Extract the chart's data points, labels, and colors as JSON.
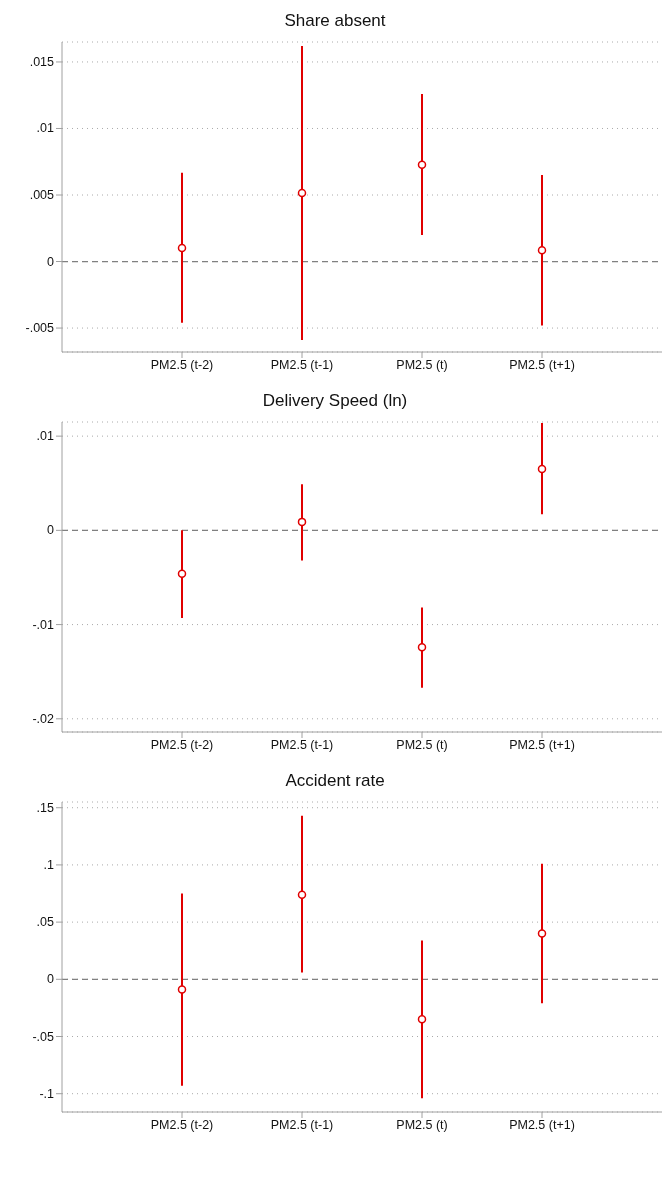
{
  "chart_data": [
    {
      "type": "scatter",
      "title": "Share absent",
      "categories": [
        "PM2.5 (t-2)",
        "PM2.5 (t-1)",
        "PM2.5 (t)",
        "PM2.5 (t+1)"
      ],
      "color": "#e00000",
      "marker": "circle",
      "values": [
        0.00102,
        0.00515,
        0.00728,
        0.00085
      ],
      "errors": [
        [
          -0.0046,
          0.00667
        ],
        [
          -0.0059,
          0.0162
        ],
        [
          0.002,
          0.0126
        ],
        [
          -0.0048,
          0.0065
        ]
      ],
      "ylim": [
        -0.0068,
        0.0165
      ],
      "yticks": [
        {
          "value": -0.005,
          "label": "-.005"
        },
        {
          "value": 0,
          "label": "0"
        },
        {
          "value": 0.005,
          "label": ".005"
        },
        {
          "value": 0.01,
          "label": ".01"
        },
        {
          "value": 0.015,
          "label": ".015"
        }
      ],
      "grid": "y",
      "ref_lines": [
        {
          "axis": "y",
          "value": 0,
          "color": "#808080",
          "line_style": "dashed"
        }
      ]
    },
    {
      "type": "scatter",
      "title": "Delivery Speed (ln)",
      "categories": [
        "PM2.5 (t-2)",
        "PM2.5 (t-1)",
        "PM2.5 (t)",
        "PM2.5 (t+1)"
      ],
      "color": "#e00000",
      "marker": "circle",
      "values": [
        -0.0046,
        0.0009,
        -0.0124,
        0.0065
      ],
      "errors": [
        [
          -0.0093,
          0.0
        ],
        [
          -0.0032,
          0.0049
        ],
        [
          -0.0167,
          -0.0082
        ],
        [
          0.0017,
          0.0114
        ]
      ],
      "ylim": [
        -0.0214,
        0.0115
      ],
      "yticks": [
        {
          "value": -0.02,
          "label": "-.02"
        },
        {
          "value": -0.01,
          "label": "-.01"
        },
        {
          "value": 0,
          "label": "0"
        },
        {
          "value": 0.01,
          "label": ".01"
        }
      ],
      "grid": "y",
      "ref_lines": [
        {
          "axis": "y",
          "value": 0,
          "color": "#808080",
          "line_style": "dashed"
        }
      ]
    },
    {
      "type": "scatter",
      "title": "Accident rate",
      "categories": [
        "PM2.5 (t-2)",
        "PM2.5 (t-1)",
        "PM2.5 (t)",
        "PM2.5 (t+1)"
      ],
      "color": "#e00000",
      "marker": "circle",
      "values": [
        -0.009,
        0.074,
        -0.035,
        0.04
      ],
      "errors": [
        [
          -0.093,
          0.075
        ],
        [
          0.006,
          0.143
        ],
        [
          -0.104,
          0.034
        ],
        [
          -0.021,
          0.101
        ]
      ],
      "ylim": [
        -0.116,
        0.155
      ],
      "yticks": [
        {
          "value": -0.1,
          "label": "-.1"
        },
        {
          "value": -0.05,
          "label": "-.05"
        },
        {
          "value": 0,
          "label": "0"
        },
        {
          "value": 0.05,
          "label": ".05"
        },
        {
          "value": 0.1,
          "label": ".1"
        },
        {
          "value": 0.15,
          "label": ".15"
        }
      ],
      "grid": "y",
      "ref_lines": [
        {
          "axis": "y",
          "value": 0,
          "color": "#808080",
          "line_style": "dashed"
        }
      ]
    }
  ]
}
